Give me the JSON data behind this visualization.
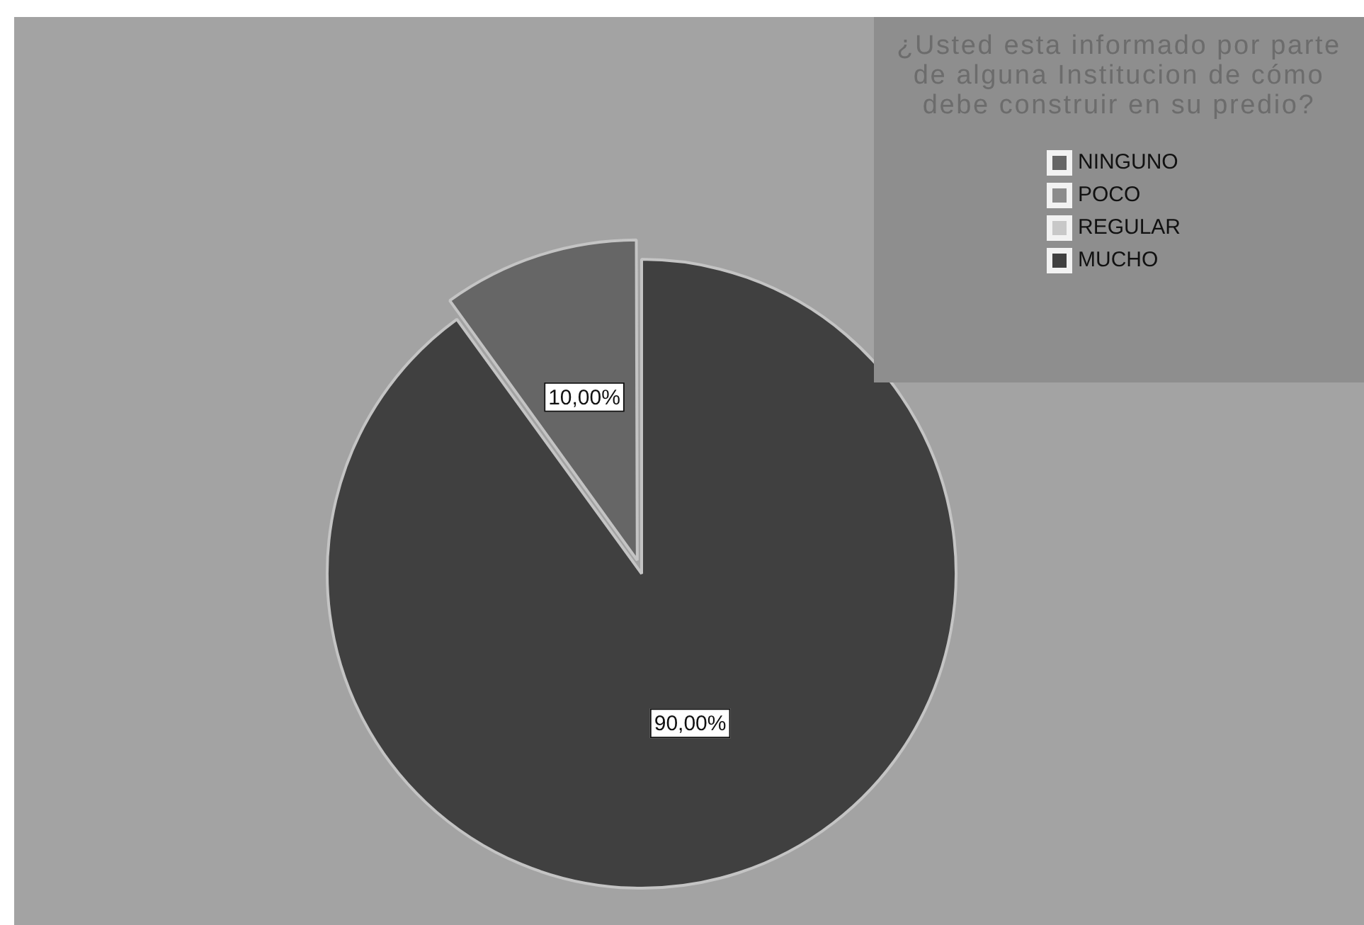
{
  "chart_data": {
    "type": "pie",
    "title": "¿Usted esta informado por parte de alguna Institucion de cómo debe construir en su predio?",
    "categories": [
      "NINGUNO",
      "POCO",
      "REGULAR",
      "MUCHO"
    ],
    "values": [
      10,
      0,
      0,
      90
    ],
    "colors": [
      "#666666",
      "#8c8c8c",
      "#c8c8c8",
      "#404040"
    ],
    "value_labels": [
      "10,00%",
      null,
      null,
      "90,00%"
    ],
    "legend": "top right"
  }
}
